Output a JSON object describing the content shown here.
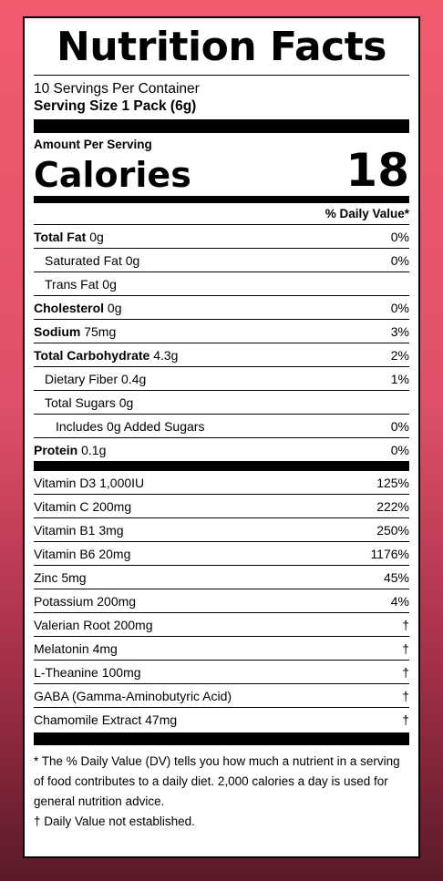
{
  "title": "Nutrition Facts",
  "servings_per_container": "10 Servings Per Container",
  "serving_size": "Serving Size 1 Pack (6g)",
  "amount_per_serving": "Amount Per Serving",
  "calories": {
    "label": "Calories",
    "value": "18"
  },
  "dv_header": "% Daily Value*",
  "nutrients": [
    {
      "name": "Total Fat",
      "amount": "0g",
      "dv": "0%"
    },
    {
      "name": "Saturated Fat",
      "amount": "0g",
      "dv": "0%"
    },
    {
      "name": "Trans Fat",
      "amount": "0g",
      "dv": ""
    },
    {
      "name": "Cholesterol",
      "amount": "0g",
      "dv": "0%"
    },
    {
      "name": "Sodium",
      "amount": "75mg",
      "dv": "3%"
    },
    {
      "name": "Total Carbohydrate",
      "amount": "4.3g",
      "dv": "2%"
    },
    {
      "name": "Dietary Fiber",
      "amount": "0.4g",
      "dv": "1%"
    },
    {
      "name": "Total Sugars",
      "amount": "0g",
      "dv": ""
    },
    {
      "name": "Includes 0g Added Sugars",
      "amount": "",
      "dv": "0%"
    },
    {
      "name": "Protein",
      "amount": "0.1g",
      "dv": "0%"
    }
  ],
  "vitamins": [
    {
      "text": "Vitamin D3 1,000IU",
      "dv": "125%"
    },
    {
      "text": "Vitamin C 200mg",
      "dv": "222%"
    },
    {
      "text": "Vitamin B1 3mg",
      "dv": "250%"
    },
    {
      "text": "Vitamin B6 20mg",
      "dv": "1176%"
    },
    {
      "text": "Zinc 5mg",
      "dv": "45%"
    },
    {
      "text": "Potassium 200mg",
      "dv": "4%"
    },
    {
      "text": "Valerian Root 200mg",
      "dv": "†"
    },
    {
      "text": "Melatonin 4mg",
      "dv": "†"
    },
    {
      "text": "L-Theanine 100mg",
      "dv": "†"
    },
    {
      "text": "GABA (Gamma-Aminobutyric Acid)",
      "dv": "†"
    },
    {
      "text": "Chamomile Extract 47mg",
      "dv": "†"
    }
  ],
  "footnote": "* The % Daily Value (DV) tells you how much a nutrient in a serving of food contributes to a daily diet. 2,000 calories a day is used for general nutrition advice.",
  "dagger_note": "† Daily Value not established."
}
